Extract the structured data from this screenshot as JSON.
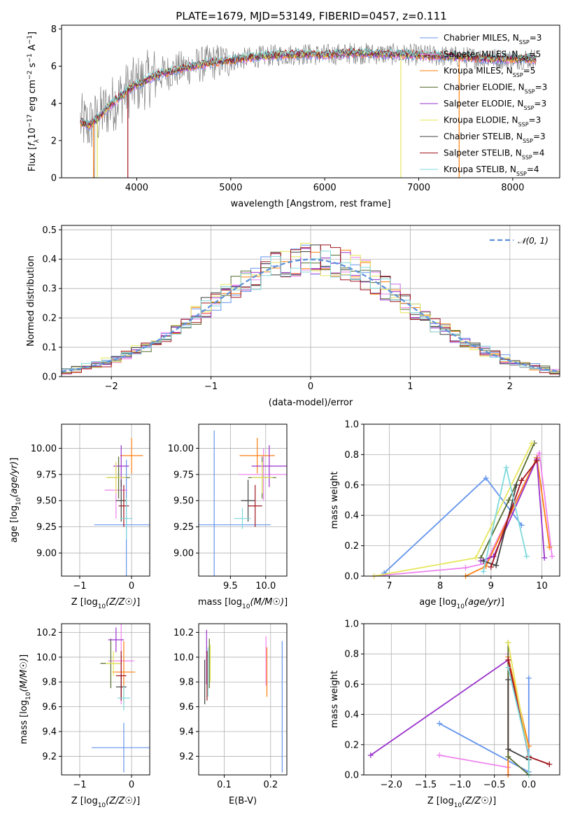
{
  "figure_title": "PLATE=1679, MJD=53149, FIBERID=0457, z=0.111",
  "colors": {
    "Chabrier MILES": "#6495ed",
    "Salpeter MILES": "#ee82ee",
    "Kroupa MILES": "#ff7f0e",
    "Chabrier ELODIE": "#556b2f",
    "Salpeter ELODIE": "#9932cc",
    "Kroupa ELODIE": "#e6e65a",
    "Chabrier STELIB": "#404040",
    "Salpeter STELIB": "#a0141e",
    "Kroupa STELIB": "#7fd8dc",
    "data": "#808080",
    "normal": "#5b8fd9"
  },
  "chart_data": [
    {
      "id": "spectrum",
      "type": "line",
      "title": "PLATE=1679, MJD=53149, FIBERID=0457, z=0.111",
      "xlabel": "wavelength [Angstrom, rest frame]",
      "ylabel": "Flux [f_λ10^-17 erg cm^-2 s^-1 A^-1]",
      "xlim": [
        3200,
        8500
      ],
      "ylim": [
        0,
        8.2
      ],
      "xticks": [
        "4000",
        "5000",
        "6000",
        "7000",
        "8000"
      ],
      "yticks": [
        "0",
        "2",
        "4",
        "6",
        "8"
      ],
      "grid": false,
      "legend_position": "right",
      "legend": [
        {
          "label": "Chabrier MILES, N_SSP=3",
          "main": "Chabrier MILES, N",
          "sub": "SSP",
          "tail": "=3"
        },
        {
          "label": "Salpeter MILES, N_SSP=5",
          "main": "Salpeter MILES, N",
          "sub": "SSP",
          "tail": "=5"
        },
        {
          "label": "Kroupa MILES, N_SSP=5",
          "main": "Kroupa MILES, N",
          "sub": "SSP",
          "tail": "=5"
        },
        {
          "label": "Chabrier ELODIE, N_SSP=3",
          "main": "Chabrier ELODIE, N",
          "sub": "SSP",
          "tail": "=3"
        },
        {
          "label": "Salpeter ELODIE, N_SSP=3",
          "main": "Salpeter ELODIE, N",
          "sub": "SSP",
          "tail": "=3"
        },
        {
          "label": "Kroupa ELODIE, N_SSP=3",
          "main": "Kroupa ELODIE, N",
          "sub": "SSP",
          "tail": "=3"
        },
        {
          "label": "Chabrier STELIB, N_SSP=3",
          "main": "Chabrier STELIB, N",
          "sub": "SSP",
          "tail": "=3"
        },
        {
          "label": "Salpeter STELIB, N_SSP=4",
          "main": "Salpeter STELIB, N",
          "sub": "SSP",
          "tail": "=4"
        },
        {
          "label": "Kroupa STELIB, N_SSP=4",
          "main": "Kroupa STELIB, N",
          "sub": "SSP",
          "tail": "=4"
        }
      ],
      "model_continuum": [
        [
          3400,
          3.0
        ],
        [
          3500,
          2.8
        ],
        [
          3700,
          3.8
        ],
        [
          3900,
          4.7
        ],
        [
          4000,
          5.0
        ],
        [
          4200,
          5.5
        ],
        [
          4500,
          5.9
        ],
        [
          4800,
          6.2
        ],
        [
          5000,
          6.3
        ],
        [
          5200,
          6.45
        ],
        [
          5500,
          6.6
        ],
        [
          5800,
          6.65
        ],
        [
          6000,
          6.6
        ],
        [
          6300,
          6.7
        ],
        [
          6600,
          6.65
        ],
        [
          7000,
          6.6
        ],
        [
          7400,
          6.5
        ],
        [
          7800,
          6.4
        ],
        [
          8250,
          6.4
        ]
      ],
      "model_dips": [
        [
          3540,
          0.0
        ],
        [
          3580,
          0.0
        ],
        [
          3905,
          0.0
        ],
        [
          6810,
          0.0
        ],
        [
          7430,
          0.0
        ]
      ]
    },
    {
      "id": "residuals",
      "type": "bar",
      "xlabel": "(data-model)/error",
      "ylabel": "Normed distribution",
      "xlim": [
        -2.5,
        2.5
      ],
      "ylim": [
        0,
        0.515
      ],
      "xticks": [
        "−2",
        "−1",
        "0",
        "1",
        "2"
      ],
      "yticks": [
        "0.0",
        "0.1",
        "0.2",
        "0.3",
        "0.4",
        "0.5"
      ],
      "grid": true,
      "legend_position": "top-right",
      "normal_label": "𝒩(0, 1)",
      "bin_width": 0.1
    },
    {
      "id": "age_vs_Z",
      "type": "scatter",
      "xlabel": "Z [log10(Z/Z☉)]",
      "ylabel": "age  [log10(age/yr)]",
      "xlim": [
        -1.35,
        0.35
      ],
      "ylim": [
        8.78,
        10.23
      ],
      "xticks": [
        "−1",
        "0"
      ],
      "yticks": [
        "9.00",
        "9.25",
        "9.50",
        "9.75",
        "10.00"
      ],
      "grid": true,
      "points": [
        {
          "model": "Chabrier MILES",
          "x": -0.1,
          "xerr": 0.62,
          "y": 9.27,
          "yerr": 0.62
        },
        {
          "model": "Salpeter MILES",
          "x": -0.3,
          "xerr": 0.22,
          "y": 9.6,
          "yerr": 0.27
        },
        {
          "model": "Kroupa MILES",
          "x": 0.0,
          "xerr": 0.22,
          "y": 9.93,
          "yerr": 0.17
        },
        {
          "model": "Chabrier ELODIE",
          "x": -0.25,
          "xerr": 0.22,
          "y": 9.72,
          "yerr": 0.2
        },
        {
          "model": "Salpeter ELODIE",
          "x": -0.2,
          "xerr": 0.15,
          "y": 9.83,
          "yerr": 0.2
        },
        {
          "model": "Kroupa ELODIE",
          "x": -0.3,
          "xerr": 0.2,
          "y": 9.72,
          "yerr": 0.15
        },
        {
          "model": "Chabrier STELIB",
          "x": -0.2,
          "xerr": 0.1,
          "y": 9.5,
          "yerr": 0.2
        },
        {
          "model": "Salpeter STELIB",
          "x": -0.15,
          "xerr": 0.1,
          "y": 9.45,
          "yerr": 0.2
        },
        {
          "model": "Kroupa STELIB",
          "x": -0.1,
          "xerr": 0.12,
          "y": 9.33,
          "yerr": 0.2
        }
      ]
    },
    {
      "id": "age_vs_mass",
      "type": "scatter",
      "xlabel": "mass [log10(M/M☉)]",
      "ylabel": "",
      "xlim": [
        9.05,
        10.3
      ],
      "ylim": [
        8.78,
        10.23
      ],
      "xticks": [
        "9.5",
        "10.0"
      ],
      "yticks": [
        "9.00",
        "9.25",
        "9.50",
        "9.75",
        "10.00"
      ],
      "grid": true,
      "points": [
        {
          "model": "Chabrier MILES",
          "x": 9.27,
          "xerr": 0.8,
          "y": 9.27,
          "yerr": 0.9
        },
        {
          "model": "Salpeter MILES",
          "x": 9.97,
          "xerr": 0.35,
          "y": 9.75,
          "yerr": 0.25
        },
        {
          "model": "Kroupa MILES",
          "x": 9.88,
          "xerr": 0.25,
          "y": 9.93,
          "yerr": 0.17
        },
        {
          "model": "Chabrier ELODIE",
          "x": 9.95,
          "xerr": 0.2,
          "y": 9.72,
          "yerr": 0.2
        },
        {
          "model": "Salpeter ELODIE",
          "x": 10.05,
          "xerr": 0.25,
          "y": 9.83,
          "yerr": 0.2
        },
        {
          "model": "Kroupa ELODIE",
          "x": 9.95,
          "xerr": 0.15,
          "y": 9.72,
          "yerr": 0.15
        },
        {
          "model": "Chabrier STELIB",
          "x": 9.75,
          "xerr": 0.1,
          "y": 9.5,
          "yerr": 0.2
        },
        {
          "model": "Salpeter STELIB",
          "x": 9.85,
          "xerr": 0.1,
          "y": 9.45,
          "yerr": 0.2
        },
        {
          "model": "Kroupa STELIB",
          "x": 9.67,
          "xerr": 0.12,
          "y": 9.33,
          "yerr": 0.1
        }
      ]
    },
    {
      "id": "weight_vs_age",
      "type": "line",
      "xlabel": "age  [log10(age/yr)]",
      "ylabel": "mass weight",
      "xlim": [
        6.5,
        10.35
      ],
      "ylim": [
        0,
        1
      ],
      "xticks": [
        "7",
        "8",
        "9",
        "10"
      ],
      "yticks": [
        "0.0",
        "0.2",
        "0.4",
        "0.6",
        "0.8",
        "1.0"
      ],
      "grid": true,
      "series": [
        {
          "model": "Chabrier MILES",
          "x": [
            6.9,
            8.9,
            9.6
          ],
          "y": [
            0.02,
            0.645,
            0.335
          ]
        },
        {
          "model": "Salpeter MILES",
          "x": [
            6.7,
            8.5,
            8.9,
            9.95,
            10.2
          ],
          "y": [
            0.0,
            0.055,
            0.085,
            0.81,
            0.13
          ]
        },
        {
          "model": "Kroupa MILES",
          "x": [
            8.5,
            8.9,
            9.9,
            10.15
          ],
          "y": [
            0.0,
            0.065,
            0.78,
            0.19
          ]
        },
        {
          "model": "Chabrier ELODIE",
          "x": [
            8.8,
            9.35,
            9.85
          ],
          "y": [
            0.12,
            0.5,
            0.875
          ]
        },
        {
          "model": "Salpeter ELODIE",
          "x": [
            8.8,
            9.05,
            9.9,
            10.05
          ],
          "y": [
            0.1,
            0.13,
            0.77,
            0.12
          ]
        },
        {
          "model": "Kroupa ELODIE",
          "x": [
            6.7,
            8.7,
            9.8
          ],
          "y": [
            0.0,
            0.12,
            0.875
          ]
        },
        {
          "model": "Chabrier STELIB",
          "x": [
            8.85,
            9.1,
            9.5
          ],
          "y": [
            0.1,
            0.07,
            0.6
          ]
        },
        {
          "model": "Salpeter STELIB",
          "x": [
            9.0,
            9.6,
            9.9
          ],
          "y": [
            0.06,
            0.63,
            0.76
          ]
        },
        {
          "model": "Kroupa STELIB",
          "x": [
            8.85,
            9.3,
            9.7
          ],
          "y": [
            0.03,
            0.715,
            0.13
          ]
        }
      ]
    },
    {
      "id": "mass_vs_Z",
      "type": "scatter",
      "xlabel": "Z [log10(Z/Z☉)]",
      "ylabel": "mass [log10(M/M☉)]",
      "xlim": [
        -1.35,
        0.35
      ],
      "ylim": [
        9.05,
        10.27
      ],
      "xticks": [
        "−1",
        "0"
      ],
      "yticks": [
        "9.2",
        "9.4",
        "9.6",
        "9.8",
        "10.0",
        "10.2"
      ],
      "grid": true,
      "points": [
        {
          "model": "Chabrier MILES",
          "x": -0.15,
          "xerr": 0.62,
          "y": 9.27,
          "yerr": 0.2
        },
        {
          "model": "Salpeter MILES",
          "x": -0.2,
          "xerr": 0.25,
          "y": 9.97,
          "yerr": 0.35
        },
        {
          "model": "Kroupa MILES",
          "x": -0.15,
          "xerr": 0.22,
          "y": 9.88,
          "yerr": 0.25
        },
        {
          "model": "Chabrier ELODIE",
          "x": -0.4,
          "xerr": 0.2,
          "y": 9.95,
          "yerr": 0.2
        },
        {
          "model": "Salpeter ELODIE",
          "x": -0.3,
          "xerr": 0.15,
          "y": 10.14,
          "yerr": 0.1
        },
        {
          "model": "Kroupa ELODIE",
          "x": -0.35,
          "xerr": 0.15,
          "y": 9.95,
          "yerr": 0.1
        },
        {
          "model": "Chabrier STELIB",
          "x": -0.2,
          "xerr": 0.1,
          "y": 9.76,
          "yerr": 0.1
        },
        {
          "model": "Salpeter STELIB",
          "x": -0.2,
          "xerr": 0.1,
          "y": 9.85,
          "yerr": 0.2
        },
        {
          "model": "Kroupa STELIB",
          "x": -0.15,
          "xerr": 0.12,
          "y": 9.67,
          "yerr": 0.1
        }
      ]
    },
    {
      "id": "mass_vs_ebv",
      "type": "scatter",
      "xlabel": "E(B-V)",
      "ylabel": "",
      "xlim": [
        0.045,
        0.235
      ],
      "ylim": [
        9.05,
        10.27
      ],
      "xticks": [
        "0.1",
        "0.2"
      ],
      "yticks": [
        "9.2",
        "9.4",
        "9.6",
        "9.8",
        "10.0",
        "10.2"
      ],
      "grid": true,
      "points": [
        {
          "model": "Chabrier MILES",
          "x": 0.225,
          "xerr": 0,
          "y": 9.6,
          "yerr": 0.53
        },
        {
          "model": "Salpeter MILES",
          "x": 0.19,
          "xerr": 0,
          "y": 9.97,
          "yerr": 0.2
        },
        {
          "model": "Kroupa MILES",
          "x": 0.192,
          "xerr": 0,
          "y": 9.88,
          "yerr": 0.2
        },
        {
          "model": "Chabrier ELODIE",
          "x": 0.068,
          "xerr": 0,
          "y": 9.95,
          "yerr": 0.2
        },
        {
          "model": "Salpeter ELODIE",
          "x": 0.062,
          "xerr": 0,
          "y": 10.0,
          "yerr": 0.22
        },
        {
          "model": "Kroupa ELODIE",
          "x": 0.07,
          "xerr": 0,
          "y": 9.95,
          "yerr": 0.15
        },
        {
          "model": "Chabrier STELIB",
          "x": 0.058,
          "xerr": 0,
          "y": 9.8,
          "yerr": 0.18
        },
        {
          "model": "Salpeter STELIB",
          "x": 0.063,
          "xerr": 0,
          "y": 9.85,
          "yerr": 0.2
        },
        {
          "model": "Kroupa STELIB",
          "x": 0.065,
          "xerr": 0,
          "y": 9.88,
          "yerr": 0.2
        }
      ]
    },
    {
      "id": "weight_vs_Z",
      "type": "line",
      "xlabel": "Z [log10(Z/Z☉)]",
      "ylabel": "mass weight",
      "xlim": [
        -2.4,
        0.45
      ],
      "ylim": [
        0,
        1
      ],
      "xticks": [
        "−2.0",
        "−1.5",
        "−1.0",
        "−0.5",
        "0.0"
      ],
      "yticks": [
        "0.0",
        "0.2",
        "0.4",
        "0.6",
        "0.8",
        "1.0"
      ],
      "grid": true,
      "series": [
        {
          "model": "Chabrier MILES",
          "x": [
            0.0,
            0.0,
            -1.3
          ],
          "y": [
            0.64,
            0.02,
            0.34
          ]
        },
        {
          "model": "Salpeter MILES",
          "x": [
            -1.3,
            -0.3,
            -0.3,
            -0.3
          ],
          "y": [
            0.13,
            0.05,
            0.8,
            0.0
          ]
        },
        {
          "model": "Kroupa MILES",
          "x": [
            -0.3,
            -0.3,
            0.0
          ],
          "y": [
            0.0,
            0.78,
            0.19
          ]
        },
        {
          "model": "Chabrier ELODIE",
          "x": [
            -0.3,
            -0.3,
            0.0
          ],
          "y": [
            0.875,
            0.12,
            0.0
          ]
        },
        {
          "model": "Salpeter ELODIE",
          "x": [
            -2.3,
            -0.3,
            0.0
          ],
          "y": [
            0.13,
            0.76,
            0.12
          ]
        },
        {
          "model": "Kroupa ELODIE",
          "x": [
            -0.3,
            0.0,
            0.0
          ],
          "y": [
            0.875,
            0.12,
            0.0
          ]
        },
        {
          "model": "Chabrier STELIB",
          "x": [
            -0.3,
            -0.3,
            0.0
          ],
          "y": [
            0.63,
            0.17,
            0.1
          ]
        },
        {
          "model": "Salpeter STELIB",
          "x": [
            -0.3,
            0.0,
            0.3
          ],
          "y": [
            0.76,
            0.12,
            0.07
          ]
        },
        {
          "model": "Kroupa STELIB",
          "x": [
            -0.3,
            0.0,
            0.0
          ],
          "y": [
            0.71,
            0.13,
            0.0
          ]
        }
      ]
    }
  ]
}
